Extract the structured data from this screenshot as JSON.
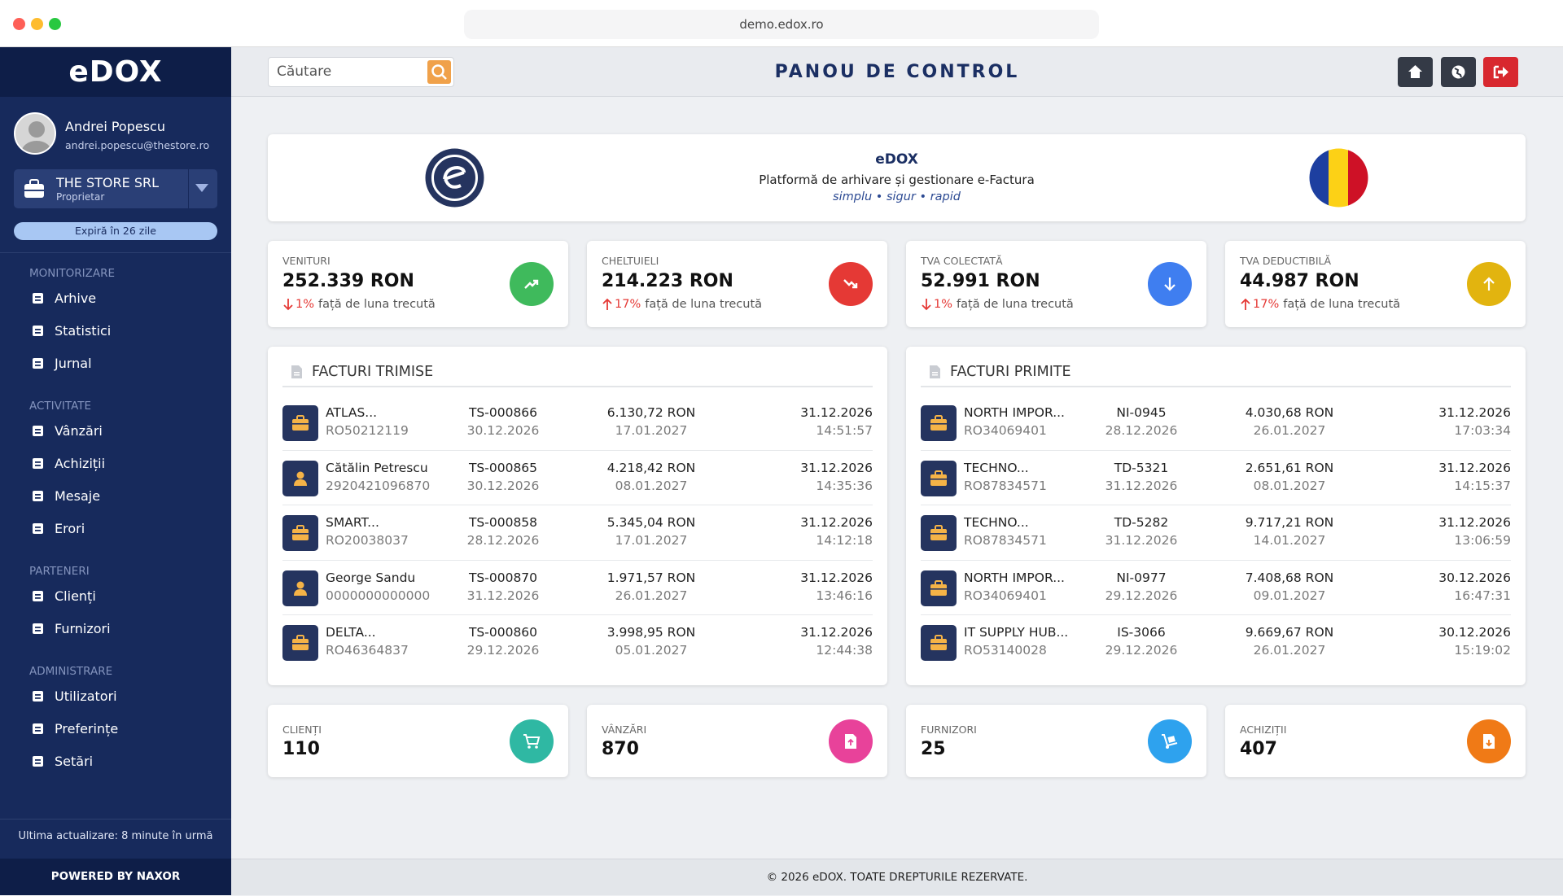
{
  "browser": {
    "url": "demo.edox.ro"
  },
  "sidebar": {
    "logo": "eDOX",
    "user": {
      "name": "Andrei Popescu",
      "email": "andrei.popescu@thestore.ro"
    },
    "company": {
      "name": "THE STORE SRL",
      "role": "Proprietar"
    },
    "expiry": "Expiră în 26 zile",
    "sections": [
      {
        "title": "MONITORIZARE",
        "items": [
          "Arhive",
          "Statistici",
          "Jurnal"
        ]
      },
      {
        "title": "ACTIVITATE",
        "items": [
          "Vânzări",
          "Achiziții",
          "Mesaje",
          "Erori"
        ]
      },
      {
        "title": "PARTENERI",
        "items": [
          "Clienți",
          "Furnizori"
        ]
      },
      {
        "title": "ADMINISTRARE",
        "items": [
          "Utilizatori",
          "Preferințe",
          "Setări"
        ]
      }
    ],
    "last_update_label": "Ultima actualizare:",
    "last_update": "8 minute în urmă",
    "powered": "POWERED BY NAXOR"
  },
  "header": {
    "search_placeholder": "Căutare",
    "title": "PANOU DE CONTROL"
  },
  "banner": {
    "title": "eDOX",
    "subtitle": "Platformă de arhivare și gestionare e-Factura",
    "tagline": "simplu • sigur • rapid"
  },
  "stats": [
    {
      "label": "VENITURI",
      "value": "252.339 RON",
      "direction": "down",
      "change": "1%",
      "note": "față de luna trecută",
      "color": "#3fba5c"
    },
    {
      "label": "CHELTUIELI",
      "value": "214.223 RON",
      "direction": "up",
      "change": "17%",
      "note": "față de luna trecută",
      "color": "#e53935"
    },
    {
      "label": "TVA COLECTATĂ",
      "value": "52.991 RON",
      "direction": "down",
      "change": "1%",
      "note": "față de luna trecută",
      "color": "#3f7ef0"
    },
    {
      "label": "TVA DEDUCTIBILĂ",
      "value": "44.987 RON",
      "direction": "up",
      "change": "17%",
      "note": "față de luna trecută",
      "color": "#e2b40f"
    }
  ],
  "invoices": [
    {
      "title": "FACTURI TRIMISE",
      "rows": [
        {
          "kind": "company",
          "party": "ATLAS...",
          "code": "RO50212119",
          "number": "TS-000866",
          "issued": "30.12.2026",
          "amount": "6.130,72 RON",
          "due": "17.01.2027",
          "date": "31.12.2026",
          "time": "14:51:57"
        },
        {
          "kind": "person",
          "party": "Cătălin Petrescu",
          "code": "2920421096870",
          "number": "TS-000865",
          "issued": "30.12.2026",
          "amount": "4.218,42 RON",
          "due": "08.01.2027",
          "date": "31.12.2026",
          "time": "14:35:36"
        },
        {
          "kind": "company",
          "party": "SMART...",
          "code": "RO20038037",
          "number": "TS-000858",
          "issued": "28.12.2026",
          "amount": "5.345,04 RON",
          "due": "17.01.2027",
          "date": "31.12.2026",
          "time": "14:12:18"
        },
        {
          "kind": "person",
          "party": "George Sandu",
          "code": "0000000000000",
          "number": "TS-000870",
          "issued": "31.12.2026",
          "amount": "1.971,57 RON",
          "due": "26.01.2027",
          "date": "31.12.2026",
          "time": "13:46:16"
        },
        {
          "kind": "company",
          "party": "DELTA...",
          "code": "RO46364837",
          "number": "TS-000860",
          "issued": "29.12.2026",
          "amount": "3.998,95 RON",
          "due": "05.01.2027",
          "date": "31.12.2026",
          "time": "12:44:38"
        }
      ]
    },
    {
      "title": "FACTURI PRIMITE",
      "rows": [
        {
          "kind": "company",
          "party": "NORTH IMPOR...",
          "code": "RO34069401",
          "number": "NI-0945",
          "issued": "28.12.2026",
          "amount": "4.030,68 RON",
          "due": "26.01.2027",
          "date": "31.12.2026",
          "time": "17:03:34"
        },
        {
          "kind": "company",
          "party": "TECHNO...",
          "code": "RO87834571",
          "number": "TD-5321",
          "issued": "31.12.2026",
          "amount": "2.651,61 RON",
          "due": "08.01.2027",
          "date": "31.12.2026",
          "time": "14:15:37"
        },
        {
          "kind": "company",
          "party": "TECHNO...",
          "code": "RO87834571",
          "number": "TD-5282",
          "issued": "31.12.2026",
          "amount": "9.717,21 RON",
          "due": "14.01.2027",
          "date": "31.12.2026",
          "time": "13:06:59"
        },
        {
          "kind": "company",
          "party": "NORTH IMPOR...",
          "code": "RO34069401",
          "number": "NI-0977",
          "issued": "29.12.2026",
          "amount": "7.408,68 RON",
          "due": "09.01.2027",
          "date": "30.12.2026",
          "time": "16:47:31"
        },
        {
          "kind": "company",
          "party": "IT SUPPLY HUB...",
          "code": "RO53140028",
          "number": "IS-3066",
          "issued": "29.12.2026",
          "amount": "9.669,67 RON",
          "due": "26.01.2027",
          "date": "30.12.2026",
          "time": "15:19:02"
        }
      ]
    }
  ],
  "counters": [
    {
      "label": "CLIENȚI",
      "value": 110,
      "color": "#2fb8a3"
    },
    {
      "label": "VÂNZĂRI",
      "value": 870,
      "color": "#e8429a"
    },
    {
      "label": "FURNIZORI",
      "value": 25,
      "color": "#2ea2ee"
    },
    {
      "label": "ACHIZIȚII",
      "value": 407,
      "color": "#f07a16"
    }
  ],
  "footer": "© 2026 eDOX. TOATE DREPTURILE REZERVATE."
}
